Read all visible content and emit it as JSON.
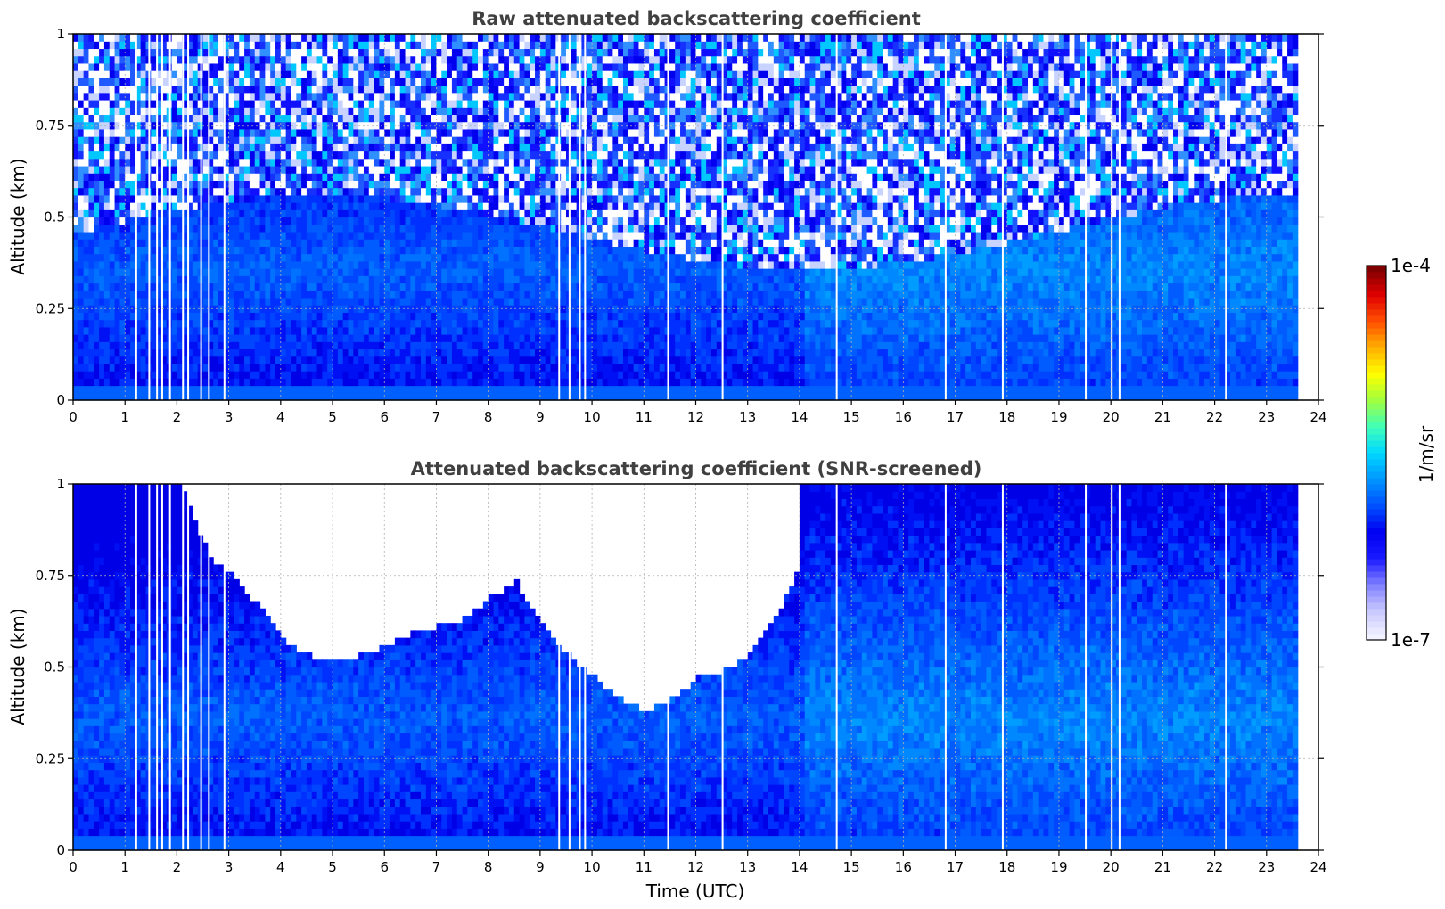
{
  "chart_data": [
    {
      "type": "heatmap",
      "title": "Raw attenuated backscattering coefficient",
      "xlabel": "",
      "ylabel": "Altitude (km)",
      "xlim": [
        0,
        24
      ],
      "ylim": [
        0,
        1
      ],
      "xticks": [
        "0",
        "1",
        "2",
        "3",
        "4",
        "5",
        "6",
        "7",
        "8",
        "9",
        "10",
        "11",
        "12",
        "13",
        "14",
        "15",
        "16",
        "17",
        "18",
        "19",
        "20",
        "21",
        "22",
        "23",
        "24"
      ],
      "yticks": [
        "0",
        "0.25",
        "0.5",
        "0.75",
        "1"
      ],
      "data_end_time": 23.6,
      "screened": false,
      "white_gap_times": [
        1.2,
        1.45,
        1.6,
        1.7,
        1.85,
        2.1,
        2.2,
        2.45,
        2.6,
        2.9,
        9.35,
        9.55,
        9.75,
        9.85,
        11.45,
        12.5,
        14.7,
        16.8,
        17.9,
        19.5,
        20.0,
        20.15,
        22.2
      ],
      "grid": true
    },
    {
      "type": "heatmap",
      "title": "Attenuated backscattering coefficient (SNR-screened)",
      "xlabel": "Time (UTC)",
      "ylabel": "Altitude (km)",
      "xlim": [
        0,
        24
      ],
      "ylim": [
        0,
        1
      ],
      "xticks": [
        "0",
        "1",
        "2",
        "3",
        "4",
        "5",
        "6",
        "7",
        "8",
        "9",
        "10",
        "11",
        "12",
        "13",
        "14",
        "15",
        "16",
        "17",
        "18",
        "19",
        "20",
        "21",
        "22",
        "23",
        "24"
      ],
      "yticks": [
        "0",
        "0.25",
        "0.5",
        "0.75",
        "1"
      ],
      "data_end_time": 23.6,
      "screened": true,
      "snr_top_boundary_km": [
        [
          0,
          1.0
        ],
        [
          2.0,
          1.0
        ],
        [
          2.3,
          0.9
        ],
        [
          2.6,
          0.78
        ],
        [
          3.0,
          0.74
        ],
        [
          3.5,
          0.66
        ],
        [
          4.0,
          0.56
        ],
        [
          4.5,
          0.52
        ],
        [
          5.0,
          0.5
        ],
        [
          5.5,
          0.52
        ],
        [
          6.0,
          0.55
        ],
        [
          6.5,
          0.58
        ],
        [
          7.0,
          0.6
        ],
        [
          7.5,
          0.62
        ],
        [
          8.0,
          0.68
        ],
        [
          8.5,
          0.72
        ],
        [
          9.0,
          0.6
        ],
        [
          9.5,
          0.52
        ],
        [
          10.0,
          0.46
        ],
        [
          10.5,
          0.4
        ],
        [
          11.0,
          0.37
        ],
        [
          11.5,
          0.4
        ],
        [
          12.0,
          0.46
        ],
        [
          12.5,
          0.48
        ],
        [
          13.0,
          0.52
        ],
        [
          13.5,
          0.62
        ],
        [
          13.9,
          0.75
        ],
        [
          14.0,
          1.0
        ],
        [
          24,
          1.0
        ]
      ],
      "white_gap_times": [
        1.2,
        1.45,
        1.6,
        1.7,
        1.85,
        2.1,
        2.2,
        2.45,
        2.6,
        2.9,
        9.35,
        9.55,
        9.75,
        9.85,
        11.45,
        12.5,
        14.7,
        16.8,
        17.9,
        19.5,
        20.0,
        20.15,
        22.2
      ],
      "grid": true
    }
  ],
  "colorbar": {
    "label": "1/m/sr",
    "min_label": "1e-7",
    "max_label": "1e-4",
    "colormap": [
      "#f2f2ff",
      "#c8c8ff",
      "#7f7fff",
      "#1a1aff",
      "#0000f0",
      "#0050ff",
      "#0096ff",
      "#00d8ff",
      "#40ffb8",
      "#a0ff40",
      "#ffff00",
      "#ffb000",
      "#ff5000",
      "#e00000",
      "#800000"
    ]
  }
}
